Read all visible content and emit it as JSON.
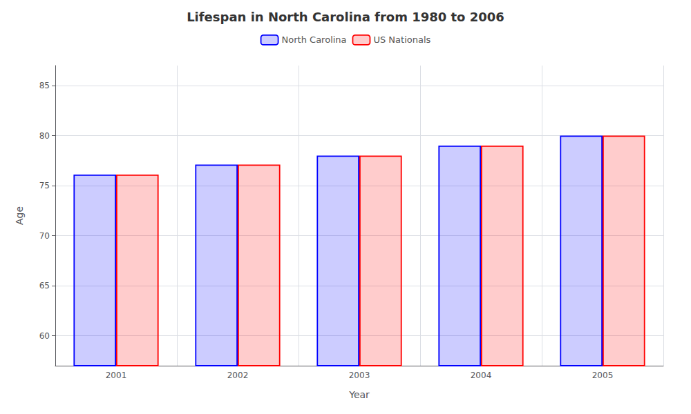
{
  "chart_data": {
    "type": "bar",
    "title": "Lifespan in North Carolina from 1980 to 2006",
    "x_label": "Year",
    "y_label": "Age",
    "categories": [
      "2001",
      "2002",
      "2003",
      "2004",
      "2005"
    ],
    "series": [
      {
        "name": "North Carolina",
        "color": "#0000ff",
        "values": [
          76.1,
          77.1,
          78.0,
          79.0,
          80.0
        ]
      },
      {
        "name": "US Nationals",
        "color": "#ff0000",
        "values": [
          76.1,
          77.1,
          78.0,
          79.0,
          80.0
        ]
      }
    ],
    "ylim": [
      57,
      87
    ],
    "yticks": [
      60,
      65,
      70,
      75,
      80,
      85
    ],
    "grid": true,
    "legend": "top"
  }
}
